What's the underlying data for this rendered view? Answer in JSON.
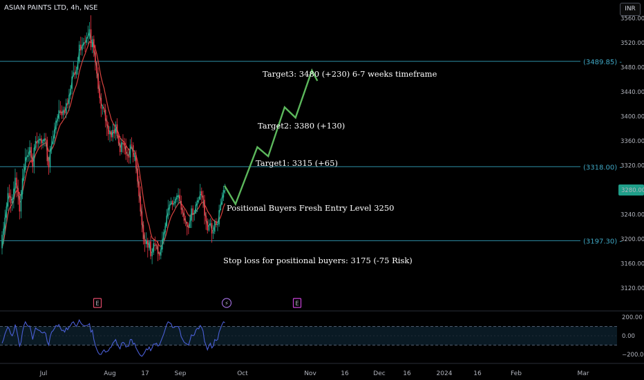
{
  "header": {
    "title": "ASIAN PAINTS LTD, 4h, NSE",
    "currency": "INR"
  },
  "chart_data": {
    "type": "candlestick",
    "y_ticks": [
      3560,
      3520,
      3480,
      3440,
      3400,
      3360,
      3320,
      3280,
      3240,
      3200,
      3160,
      3120
    ],
    "y_tick_labels": [
      "3560.00",
      "3520.00",
      "3480.00",
      "3440.00",
      "3400.00",
      "3360.00",
      "3320.00",
      "3280.00",
      "3240.00",
      "3200.00",
      "3160.00",
      "3120.00"
    ],
    "x_labels": [
      "Jul",
      "Aug",
      "17",
      "Sep",
      "Oct",
      "16",
      "Nov",
      "16",
      "Dec",
      "2024",
      "16",
      "Feb",
      "Mar"
    ],
    "last_price_label": "3280.00",
    "last_price": 3280,
    "levels": [
      {
        "value": 3489.85,
        "label": "(3489.85) -"
      },
      {
        "value": 3318.0,
        "label": "(3318.00) -"
      },
      {
        "value": 3197.3,
        "label": "(3197.30) -"
      }
    ],
    "annotations": [
      "Target3: 3480 (+230) 6-7 weeks timeframe",
      "Target2: 3380 (+130)",
      "Target1: 3315 (+65)",
      "Positional Buyers Fresh Entry Level 3250",
      "Stop loss for positional buyers: 3175 (-75 Risk)"
    ],
    "projection_path": [
      [
        36,
        3287
      ],
      [
        38,
        3257
      ],
      [
        42,
        3350
      ],
      [
        44,
        3335
      ],
      [
        47,
        3415
      ],
      [
        49,
        3398
      ],
      [
        52,
        3475
      ],
      [
        53,
        3458
      ]
    ],
    "events": [
      {
        "label": "E",
        "type": "earnings"
      },
      {
        "label": "⚡",
        "type": "split"
      },
      {
        "label": "E",
        "type": "earnings"
      }
    ],
    "oscillator": {
      "y_ticks": [
        200,
        0,
        -200
      ],
      "y_tick_labels": [
        "200.00",
        "0.00",
        "−200.00"
      ],
      "bands": [
        100,
        -100
      ]
    },
    "candles": [
      [
        3185,
        3207,
        3213,
        3175
      ],
      [
        3207,
        3217,
        3228,
        3192
      ],
      [
        3217,
        3235,
        3248,
        3207
      ],
      [
        3235,
        3253,
        3260,
        3225
      ],
      [
        3253,
        3275,
        3285,
        3246
      ],
      [
        3275,
        3269,
        3289,
        3260
      ],
      [
        3269,
        3258,
        3281,
        3243
      ],
      [
        3258,
        3265,
        3273,
        3246
      ],
      [
        3265,
        3282,
        3294,
        3250
      ],
      [
        3282,
        3300,
        3315,
        3274
      ],
      [
        3300,
        3283,
        3309,
        3268
      ],
      [
        3283,
        3270,
        3297,
        3256
      ],
      [
        3270,
        3245,
        3277,
        3232
      ],
      [
        3245,
        3273,
        3280,
        3234
      ],
      [
        3273,
        3299,
        3315,
        3265
      ],
      [
        3299,
        3313,
        3323,
        3295
      ],
      [
        3313,
        3334,
        3348,
        3308
      ],
      [
        3334,
        3334,
        3346,
        3325
      ],
      [
        3334,
        3336,
        3350,
        3326
      ],
      [
        3336,
        3350,
        3361,
        3327
      ],
      [
        3350,
        3333,
        3357,
        3324
      ],
      [
        3333,
        3318,
        3340,
        3308
      ],
      [
        3318,
        3349,
        3355,
        3307
      ],
      [
        3349,
        3360,
        3368,
        3344
      ],
      [
        3360,
        3356,
        3374,
        3346
      ],
      [
        3356,
        3361,
        3368,
        3349
      ],
      [
        3361,
        3364,
        3372,
        3354
      ],
      [
        3364,
        3356,
        3369,
        3346
      ],
      [
        3356,
        3359,
        3363,
        3348
      ],
      [
        3359,
        3364,
        3373,
        3351
      ],
      [
        3364,
        3362,
        3373,
        3351
      ],
      [
        3362,
        3327,
        3367,
        3320
      ],
      [
        3327,
        3317,
        3334,
        3305
      ],
      [
        3317,
        3347,
        3352,
        3308
      ],
      [
        3347,
        3355,
        3368,
        3339
      ],
      [
        3355,
        3364,
        3377,
        3354
      ],
      [
        3364,
        3379,
        3390,
        3355
      ],
      [
        3379,
        3393,
        3398,
        3372
      ],
      [
        3393,
        3396,
        3404,
        3385
      ],
      [
        3396,
        3410,
        3427,
        3391
      ],
      [
        3410,
        3408,
        3425,
        3402
      ],
      [
        3408,
        3402,
        3418,
        3396
      ],
      [
        3402,
        3411,
        3416,
        3396
      ],
      [
        3411,
        3405,
        3416,
        3402
      ],
      [
        3405,
        3422,
        3429,
        3397
      ],
      [
        3422,
        3420,
        3430,
        3413
      ],
      [
        3420,
        3435,
        3445,
        3409
      ],
      [
        3435,
        3445,
        3451,
        3428
      ],
      [
        3445,
        3465,
        3475,
        3436
      ],
      [
        3465,
        3472,
        3489,
        3466
      ],
      [
        3472,
        3468,
        3483,
        3461
      ],
      [
        3468,
        3476,
        3481,
        3462
      ],
      [
        3476,
        3489,
        3497,
        3468
      ],
      [
        3489,
        3517,
        3523,
        3486
      ],
      [
        3517,
        3508,
        3530,
        3500
      ],
      [
        3508,
        3516,
        3529,
        3499
      ],
      [
        3516,
        3521,
        3528,
        3510
      ],
      [
        3521,
        3520,
        3532,
        3505
      ],
      [
        3520,
        3529,
        3537,
        3516
      ],
      [
        3529,
        3532,
        3548,
        3518
      ],
      [
        3532,
        3542,
        3554,
        3526
      ],
      [
        3542,
        3513,
        3565,
        3508
      ],
      [
        3513,
        3526,
        3531,
        3503
      ],
      [
        3526,
        3504,
        3532,
        3497
      ],
      [
        3504,
        3488,
        3517,
        3475
      ],
      [
        3488,
        3470,
        3490,
        3462
      ],
      [
        3470,
        3445,
        3480,
        3438
      ],
      [
        3445,
        3430,
        3458,
        3421
      ],
      [
        3430,
        3413,
        3438,
        3399
      ],
      [
        3413,
        3414,
        3419,
        3403
      ],
      [
        3414,
        3411,
        3421,
        3407
      ],
      [
        3411,
        3393,
        3420,
        3382
      ],
      [
        3393,
        3385,
        3402,
        3368
      ],
      [
        3385,
        3371,
        3391,
        3361
      ],
      [
        3371,
        3376,
        3384,
        3358
      ],
      [
        3376,
        3366,
        3378,
        3360
      ],
      [
        3366,
        3378,
        3388,
        3359
      ],
      [
        3378,
        3372,
        3388,
        3364
      ],
      [
        3372,
        3387,
        3392,
        3361
      ],
      [
        3387,
        3368,
        3397,
        3364
      ],
      [
        3368,
        3356,
        3374,
        3352
      ],
      [
        3356,
        3342,
        3368,
        3336
      ],
      [
        3342,
        3358,
        3364,
        3338
      ],
      [
        3358,
        3357,
        3371,
        3341
      ],
      [
        3357,
        3352,
        3365,
        3338
      ],
      [
        3352,
        3338,
        3364,
        3329
      ],
      [
        3338,
        3336,
        3346,
        3325
      ],
      [
        3336,
        3333,
        3348,
        3323
      ],
      [
        3333,
        3354,
        3363,
        3323
      ],
      [
        3354,
        3353,
        3366,
        3348
      ],
      [
        3353,
        3334,
        3358,
        3325
      ],
      [
        3334,
        3337,
        3345,
        3327
      ],
      [
        3337,
        3315,
        3345,
        3307
      ],
      [
        3315,
        3294,
        3325,
        3284
      ],
      [
        3294,
        3270,
        3303,
        3259
      ],
      [
        3270,
        3245,
        3286,
        3237
      ],
      [
        3245,
        3223,
        3257,
        3211
      ],
      [
        3223,
        3200,
        3229,
        3191
      ],
      [
        3200,
        3192,
        3211,
        3179
      ],
      [
        3192,
        3198,
        3211,
        3186
      ],
      [
        3198,
        3186,
        3202,
        3170
      ],
      [
        3186,
        3196,
        3198,
        3181
      ],
      [
        3196,
        3172,
        3205,
        3167
      ],
      [
        3172,
        3178,
        3185,
        3159
      ],
      [
        3178,
        3193,
        3199,
        3174
      ],
      [
        3193,
        3191,
        3204,
        3181
      ],
      [
        3191,
        3190,
        3193,
        3183
      ],
      [
        3190,
        3176,
        3197,
        3164
      ],
      [
        3176,
        3173,
        3180,
        3166
      ],
      [
        3173,
        3183,
        3197,
        3167
      ],
      [
        3183,
        3199,
        3212,
        3178
      ],
      [
        3199,
        3211,
        3216,
        3191
      ],
      [
        3211,
        3221,
        3227,
        3203
      ],
      [
        3221,
        3238,
        3249,
        3218
      ],
      [
        3238,
        3250,
        3264,
        3232
      ],
      [
        3250,
        3256,
        3262,
        3239
      ],
      [
        3256,
        3262,
        3268,
        3258
      ],
      [
        3262,
        3256,
        3264,
        3247
      ],
      [
        3256,
        3258,
        3269,
        3253
      ],
      [
        3258,
        3265,
        3269,
        3250
      ],
      [
        3265,
        3271,
        3275,
        3260
      ],
      [
        3271,
        3272,
        3283,
        3256
      ],
      [
        3272,
        3262,
        3282,
        3258
      ],
      [
        3262,
        3248,
        3271,
        3240
      ],
      [
        3248,
        3242,
        3254,
        3236
      ],
      [
        3242,
        3230,
        3249,
        3225
      ],
      [
        3230,
        3228,
        3238,
        3221
      ],
      [
        3228,
        3220,
        3228,
        3206
      ],
      [
        3220,
        3218,
        3227,
        3208
      ],
      [
        3218,
        3230,
        3241,
        3223
      ],
      [
        3230,
        3250,
        3255,
        3218
      ],
      [
        3250,
        3241,
        3255,
        3228
      ],
      [
        3241,
        3242,
        3247,
        3230
      ],
      [
        3242,
        3256,
        3261,
        3241
      ],
      [
        3256,
        3263,
        3268,
        3244
      ],
      [
        3263,
        3264,
        3269,
        3258
      ],
      [
        3264,
        3278,
        3290,
        3266
      ],
      [
        3278,
        3271,
        3284,
        3260
      ],
      [
        3271,
        3264,
        3279,
        3251
      ],
      [
        3264,
        3238,
        3272,
        3224
      ],
      [
        3238,
        3229,
        3244,
        3215
      ],
      [
        3229,
        3214,
        3234,
        3209
      ],
      [
        3214,
        3223,
        3232,
        3212
      ],
      [
        3223,
        3226,
        3234,
        3222
      ],
      [
        3226,
        3209,
        3232,
        3194
      ],
      [
        3209,
        3212,
        3223,
        3200
      ],
      [
        3212,
        3229,
        3232,
        3208
      ],
      [
        3229,
        3224,
        3234,
        3219
      ],
      [
        3224,
        3224,
        3229,
        3213
      ],
      [
        3224,
        3247,
        3256,
        3220
      ],
      [
        3247,
        3256,
        3266,
        3248
      ],
      [
        3256,
        3268,
        3276,
        3262
      ],
      [
        3268,
        3280,
        3287,
        3262
      ],
      [
        3280,
        3280,
        3290,
        3274
      ]
    ],
    "ema_fast": [
      3185,
      3202,
      3230,
      3248,
      3263,
      3272,
      3266,
      3263,
      3270,
      3290,
      3290,
      3278,
      3260,
      3262,
      3286,
      3306,
      3326,
      3334,
      3337,
      3345,
      3340,
      3325,
      3340,
      3356,
      3359,
      3361,
      3363,
      3360,
      3360,
      3363,
      3363,
      3340,
      3325,
      3339,
      3353,
      3362,
      3373,
      3388,
      3395,
      3405,
      3408,
      3405,
      3409,
      3407,
      3418,
      3420,
      3431,
      3441,
      3458,
      3469,
      3469,
      3474,
      3486,
      3507,
      3510,
      3514,
      3519,
      3520,
      3526,
      3530,
      3538,
      3522,
      3524,
      3510,
      3495,
      3478,
      3456,
      3439,
      3422,
      3416,
      3413,
      3399,
      3389,
      3377,
      3376,
      3369,
      3375,
      3373,
      3382,
      3373,
      3361,
      3348,
      3355,
      3356,
      3354,
      3343,
      3339,
      3335,
      3348,
      3351,
      3340,
      3338,
      3323,
      3304,
      3281,
      3257,
      3234,
      3211,
      3198,
      3198,
      3190,
      3194,
      3179,
      3178,
      3188,
      3190,
      3190,
      3180,
      3175,
      3180,
      3193,
      3205,
      3216,
      3232,
      3245,
      3253,
      3259,
      3257,
      3258,
      3263,
      3268,
      3271,
      3265,
      3253,
      3246,
      3235,
      3230,
      3223,
      3219,
      3226,
      3242,
      3241,
      3242,
      3252,
      3260,
      3263,
      3273,
      3272,
      3266,
      3247,
      3235,
      3221,
      3222,
      3225,
      3214,
      3213,
      3223,
      3224,
      3224,
      3240,
      3251,
      3263,
      3275,
      3279
    ],
    "ema_slow": [
      3185,
      3195,
      3210,
      3225,
      3240,
      3249,
      3254,
      3257,
      3263,
      3275,
      3279,
      3278,
      3274,
      3270,
      3276,
      3287,
      3299,
      3310,
      3318,
      3326,
      3328,
      3326,
      3330,
      3338,
      3343,
      3347,
      3351,
      3353,
      3354,
      3356,
      3357,
      3351,
      3343,
      3344,
      3346,
      3350,
      3356,
      3365,
      3373,
      3381,
      3387,
      3390,
      3394,
      3397,
      3402,
      3406,
      3412,
      3419,
      3429,
      3438,
      3445,
      3451,
      3460,
      3472,
      3481,
      3489,
      3496,
      3502,
      3509,
      3515,
      3522,
      3520,
      3521,
      3518,
      3511,
      3502,
      3490,
      3477,
      3464,
      3454,
      3446,
      3434,
      3423,
      3412,
      3404,
      3395,
      3390,
      3385,
      3384,
      3379,
      3372,
      3365,
      3362,
      3360,
      3358,
      3353,
      3349,
      3345,
      3347,
      3348,
      3345,
      3343,
      3337,
      3327,
      3315,
      3299,
      3283,
      3266,
      3252,
      3240,
      3229,
      3222,
      3210,
      3202,
      3200,
      3198,
      3197,
      3193,
      3189,
      3188,
      3191,
      3196,
      3202,
      3211,
      3221,
      3229,
      3236,
      3241,
      3245,
      3250,
      3254,
      3258,
      3260,
      3258,
      3255,
      3251,
      3248,
      3243,
      3239,
      3237,
      3240,
      3240,
      3241,
      3244,
      3248,
      3251,
      3256,
      3259,
      3260,
      3256,
      3252,
      3246,
      3242,
      3239,
      3234,
      3231,
      3229,
      3228,
      3227,
      3231,
      3236,
      3243,
      3252,
      3258
    ],
    "cci": [
      -80,
      -40,
      20,
      60,
      95,
      70,
      20,
      0,
      40,
      120,
      60,
      -20,
      -110,
      -70,
      40,
      110,
      150,
      120,
      100,
      105,
      40,
      -40,
      30,
      85,
      70,
      60,
      55,
      35,
      30,
      40,
      25,
      -60,
      -100,
      -10,
      40,
      55,
      80,
      110,
      100,
      120,
      85,
      55,
      60,
      40,
      85,
      65,
      95,
      110,
      140,
      150,
      120,
      100,
      130,
      170,
      140,
      120,
      110,
      105,
      110,
      115,
      130,
      40,
      60,
      -40,
      -100,
      -145,
      -180,
      -200,
      -200,
      -170,
      -150,
      -175,
      -170,
      -160,
      -130,
      -120,
      -80,
      -60,
      -40,
      -90,
      -115,
      -140,
      -80,
      -70,
      -80,
      -120,
      -115,
      -110,
      -40,
      -40,
      -90,
      -80,
      -130,
      -160,
      -190,
      -210,
      -220,
      -200,
      -175,
      -140,
      -150,
      -120,
      -160,
      -130,
      -90,
      -90,
      -80,
      -110,
      -100,
      -60,
      -20,
      20,
      70,
      120,
      150,
      140,
      130,
      90,
      90,
      100,
      100,
      100,
      60,
      -10,
      -40,
      -70,
      -80,
      -90,
      -100,
      -50,
      10,
      0,
      10,
      60,
      80,
      75,
      110,
      90,
      50,
      -60,
      -100,
      -150,
      -110,
      -80,
      -130,
      -110,
      -40,
      -50,
      -40,
      40,
      80,
      120,
      150,
      140
    ]
  }
}
